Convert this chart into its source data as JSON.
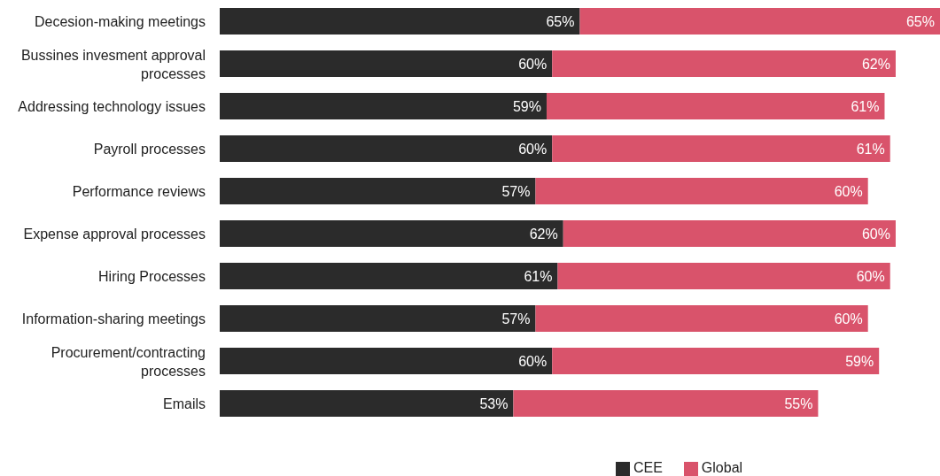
{
  "chart_data": {
    "type": "bar",
    "orientation": "horizontal",
    "stacked": true,
    "legend": "bottom",
    "tick_labels": "y",
    "grid": false,
    "categories": [
      "Decesion-making meetings",
      "Bussines invesment approval processes",
      "Addressing technology issues",
      "Payroll processes",
      "Performance reviews",
      "Expense approval processes",
      "Hiring Processes",
      "Information-sharing meetings",
      "Procurement/contracting processes",
      "Emails"
    ],
    "series": [
      {
        "name": "CEE",
        "color": "#2b2b2b",
        "values": [
          65,
          60,
          59,
          60,
          57,
          62,
          61,
          57,
          60,
          53
        ],
        "value_labels": [
          "65%",
          "60%",
          "59%",
          "60%",
          "57%",
          "62%",
          "61%",
          "57%",
          "60%",
          "53%"
        ]
      },
      {
        "name": "Global",
        "color": "#d9536b",
        "values": [
          65,
          62,
          61,
          61,
          60,
          60,
          60,
          60,
          59,
          55
        ],
        "value_labels": [
          "65%",
          "62%",
          "61%",
          "61%",
          "60%",
          "60%",
          "60%",
          "60%",
          "59%",
          "55%"
        ]
      }
    ]
  }
}
